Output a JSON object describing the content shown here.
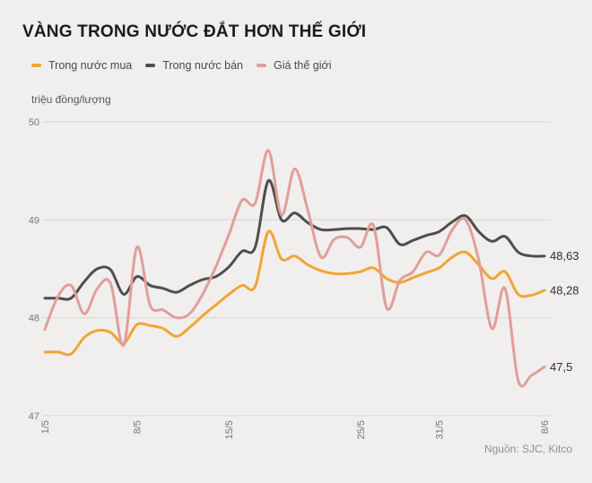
{
  "title": "VÀNG TRONG NƯỚC ĐẮT HƠN THẾ GIỚI",
  "y_axis_unit": "triệu đồng/lượng",
  "source": "Nguồn: SJC, Kitco",
  "colors": {
    "background": "#f0efed",
    "gridline": "#d8d6d3",
    "tick_text": "#767676",
    "end_label_text": "#2f2f2f"
  },
  "chart_data": {
    "type": "line",
    "title": "VÀNG TRONG NƯỚC ĐẮT HƠN THẾ GIỚI",
    "ylabel": "triệu đồng/lượng",
    "ylim": [
      47,
      50
    ],
    "y_ticks": [
      50,
      49,
      48,
      47
    ],
    "grid": true,
    "legend_position": "top",
    "categories": [
      "1/5",
      "2/5",
      "3/5",
      "4/5",
      "5/5",
      "6/5",
      "7/5",
      "8/5",
      "9/5",
      "10/5",
      "11/5",
      "12/5",
      "13/5",
      "14/5",
      "15/5",
      "16/5",
      "17/5",
      "18/5",
      "19/5",
      "20/5",
      "21/5",
      "22/5",
      "23/5",
      "24/5",
      "25/5",
      "26/5",
      "27/5",
      "28/5",
      "29/5",
      "30/5",
      "31/5",
      "1/6",
      "2/6",
      "3/6",
      "4/6",
      "5/6",
      "6/6",
      "7/6",
      "8/6"
    ],
    "x_ticks": [
      {
        "index": 0,
        "label": "1/5"
      },
      {
        "index": 7,
        "label": "8/5"
      },
      {
        "index": 14,
        "label": "15/5"
      },
      {
        "index": 24,
        "label": "25/5"
      },
      {
        "index": 30,
        "label": "31/5"
      },
      {
        "index": 38,
        "label": "8/6"
      }
    ],
    "series": [
      {
        "name": "Trong nước mua",
        "color": "#F3A433",
        "end_label": "48,28",
        "values": [
          47.65,
          47.65,
          47.63,
          47.8,
          47.87,
          47.85,
          47.74,
          47.93,
          47.92,
          47.89,
          47.81,
          47.9,
          48.02,
          48.13,
          48.24,
          48.33,
          48.32,
          48.88,
          48.6,
          48.63,
          48.54,
          48.48,
          48.45,
          48.45,
          48.47,
          48.51,
          48.4,
          48.36,
          48.41,
          48.46,
          48.51,
          48.62,
          48.67,
          48.54,
          48.4,
          48.47,
          48.24,
          48.23,
          48.28
        ]
      },
      {
        "name": "Trong nước bán",
        "color": "#4E4E4E",
        "end_label": "48,63",
        "values": [
          48.2,
          48.2,
          48.2,
          48.37,
          48.5,
          48.49,
          48.24,
          48.42,
          48.33,
          48.3,
          48.26,
          48.33,
          48.39,
          48.42,
          48.52,
          48.68,
          48.72,
          49.4,
          49.0,
          49.07,
          48.97,
          48.9,
          48.9,
          48.91,
          48.91,
          48.9,
          48.92,
          48.75,
          48.79,
          48.84,
          48.88,
          48.98,
          49.04,
          48.88,
          48.78,
          48.83,
          48.67,
          48.63,
          48.63
        ]
      },
      {
        "name": "Giá thế giới",
        "color": "#E19E9A",
        "end_label": "47,5",
        "values": [
          47.88,
          48.22,
          48.33,
          48.04,
          48.3,
          48.35,
          47.72,
          48.72,
          48.13,
          48.08,
          48.0,
          48.04,
          48.24,
          48.52,
          48.85,
          49.2,
          49.17,
          49.71,
          49.05,
          49.52,
          49.1,
          48.62,
          48.8,
          48.82,
          48.72,
          48.94,
          48.1,
          48.38,
          48.47,
          48.67,
          48.64,
          48.9,
          49.0,
          48.59,
          47.89,
          48.3,
          47.36,
          47.41,
          47.5
        ]
      }
    ]
  }
}
